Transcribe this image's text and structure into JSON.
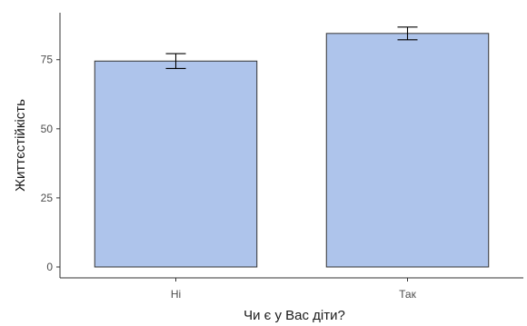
{
  "chart_data": {
    "type": "bar",
    "title": "",
    "xlabel": "Чи є у Вас діти?",
    "ylabel": "Життєстійкість",
    "categories": [
      "Ні",
      "Так"
    ],
    "values": [
      74.5,
      84.5
    ],
    "error": [
      {
        "low": 71.8,
        "high": 77.2
      },
      {
        "low": 82.2,
        "high": 86.8
      }
    ],
    "ylim": [
      0,
      92
    ],
    "yticks": [
      0,
      25,
      50,
      75
    ],
    "grid": false,
    "colors": {
      "bar_fill": "#aec4eb",
      "bar_stroke": "#333333"
    }
  }
}
